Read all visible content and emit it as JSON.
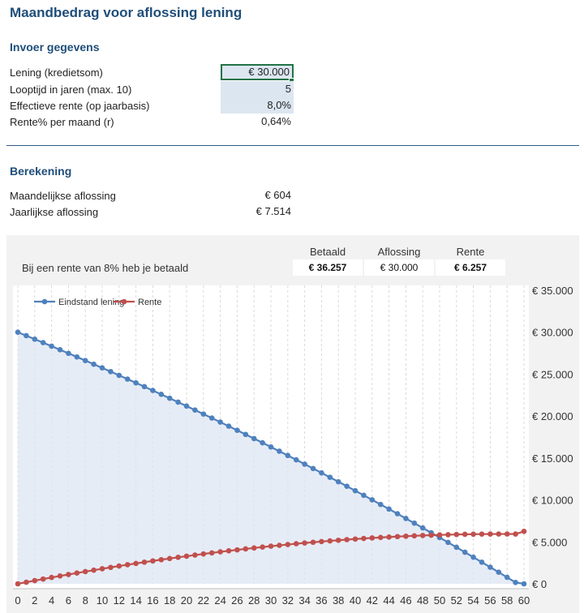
{
  "title": "Maandbedrag voor aflossing lening",
  "input_section": {
    "heading": "Invoer gegevens",
    "rows": [
      {
        "label": "Lening (kredietsom)",
        "value": "€ 30.000"
      },
      {
        "label": "Looptijd in jaren (max. 10)",
        "value": "5"
      },
      {
        "label": "Effectieve rente (op jaarbasis)",
        "value": "8,0%"
      },
      {
        "label": "Rente% per maand (r)",
        "value": "0,64%"
      }
    ]
  },
  "calc_section": {
    "heading": "Berekening",
    "rows": [
      {
        "label": "Maandelijkse aflossing",
        "value": "€ 604"
      },
      {
        "label": "Jaarlijkse aflossing",
        "value": "€ 7.514"
      }
    ]
  },
  "summary": {
    "text": "Bij een rente van 8% heb je betaald",
    "headers": [
      "Betaald",
      "Aflossing",
      "Rente"
    ],
    "values": [
      "€ 36.257",
      "€ 30.000",
      "€ 6.257"
    ]
  },
  "colors": {
    "title": "#1f4e79",
    "input_fill": "#dce6f1",
    "selection": "#217346",
    "balance_series": "#4f81bd",
    "interest_series": "#c0504d",
    "area_fill": "#dde6f3"
  },
  "chart_data": {
    "type": "line",
    "legend": [
      "Eindstand lening",
      "Rente"
    ],
    "legend_position": "top-left",
    "x_ticks": [
      "0",
      "2",
      "4",
      "6",
      "8",
      "10",
      "12",
      "14",
      "16",
      "18",
      "20",
      "22",
      "24",
      "26",
      "28",
      "30",
      "32",
      "34",
      "36",
      "38",
      "40",
      "42",
      "44",
      "46",
      "48",
      "50",
      "52",
      "54",
      "56",
      "58",
      "60"
    ],
    "y_ticks": [
      "€ 0",
      "€ 5.000",
      "€ 10.000",
      "€ 15.000",
      "€ 20.000",
      "€ 25.000",
      "€ 30.000",
      "€ 35.000"
    ],
    "xlim": [
      0,
      60
    ],
    "ylim": [
      0,
      35000
    ],
    "grid": "vertical dashed",
    "series": [
      {
        "name": "Eindstand lening",
        "x_start": 0,
        "x_step": 1,
        "values": [
          30000,
          29588,
          29172,
          28755,
          28334,
          27910,
          27483,
          27054,
          26621,
          26186,
          25747,
          25306,
          24861,
          24414,
          23963,
          23509,
          23052,
          22592,
          22129,
          21663,
          21193,
          20720,
          20244,
          19765,
          19283,
          18797,
          18308,
          17815,
          17319,
          16820,
          16317,
          15811,
          15302,
          14789,
          14272,
          13752,
          13229,
          12702,
          12171,
          11637,
          11099,
          10557,
          10012,
          9463,
          8910,
          8354,
          7794,
          7230,
          6662,
          6091,
          5516,
          4937,
          4354,
          3767,
          3176,
          2581,
          1982,
          1380,
          773,
          162,
          0
        ]
      },
      {
        "name": "Rente",
        "x_start": 0,
        "x_step": 1,
        "values": [
          0,
          193,
          382,
          569,
          752,
          933,
          1111,
          1286,
          1458,
          1627,
          1794,
          1957,
          2118,
          2276,
          2430,
          2582,
          2731,
          2877,
          3019,
          3159,
          3296,
          3429,
          3559,
          3687,
          3811,
          3931,
          4049,
          4163,
          4274,
          4381,
          4486,
          4587,
          4684,
          4778,
          4869,
          4956,
          5040,
          5120,
          5197,
          5270,
          5339,
          5405,
          5468,
          5526,
          5581,
          5632,
          5679,
          5722,
          5762,
          5797,
          5829,
          5857,
          5881,
          5900,
          5916,
          5928,
          5936,
          5940,
          5940,
          5936,
          6257
        ]
      }
    ]
  }
}
